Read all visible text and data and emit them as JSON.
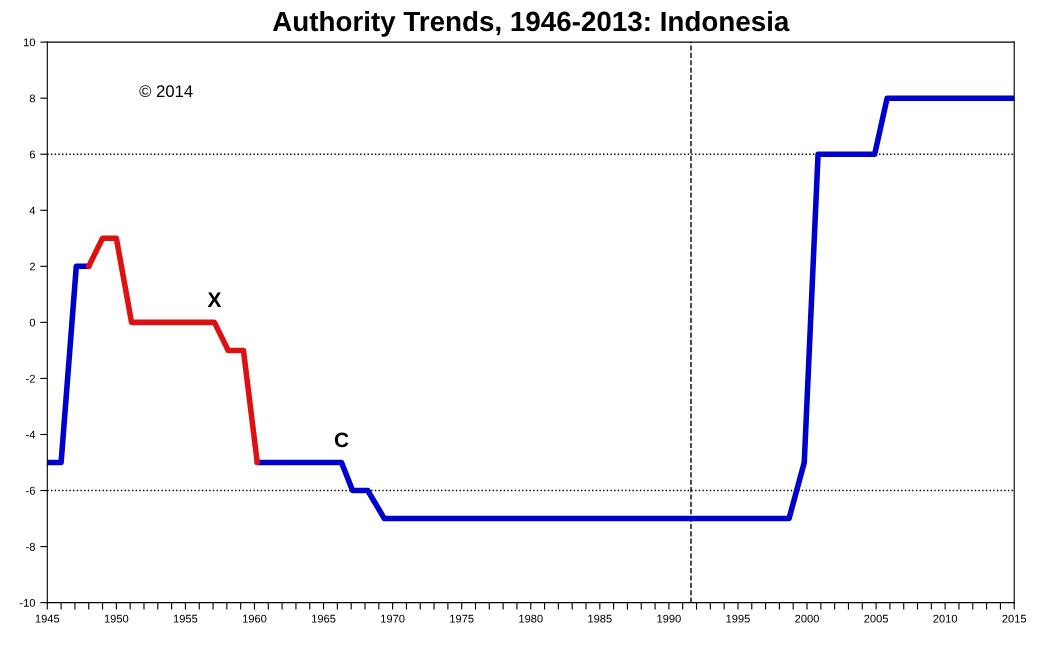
{
  "chart_data": {
    "type": "line",
    "title": "Authority Trends, 1946-2013: Indonesia",
    "series": [
      {
        "color": "#0000cc",
        "x": [
          1945,
          1946,
          1947.1,
          1948,
          null,
          1960.2,
          1966.3,
          1967.1,
          1968.2,
          1969.4,
          1998.7,
          1999.8,
          2000.8,
          2004.9,
          2005.8,
          2015
        ],
        "values": [
          -5,
          -5,
          2,
          2,
          null,
          -5,
          -5,
          -6,
          -6,
          -7,
          -7,
          -5,
          6,
          6,
          8,
          8
        ]
      },
      {
        "color": "#dd1111",
        "x": [
          1948,
          1949,
          1950,
          1951.1,
          1957.1,
          1958.1,
          1959.2,
          1960.2
        ],
        "values": [
          2,
          3,
          3,
          0,
          0,
          -1,
          -1,
          -5
        ]
      }
    ],
    "xlim": [
      1945,
      2015
    ],
    "ylim": [
      -10,
      10
    ],
    "xticks": [
      1945,
      {
        "value": 1946,
        "label": null
      },
      {
        "value": 1947,
        "label": null
      },
      {
        "value": 1948,
        "label": null
      },
      {
        "value": 1949,
        "label": null
      },
      1950,
      {
        "value": 1951,
        "label": null
      },
      {
        "value": 1952,
        "label": null
      },
      {
        "value": 1953,
        "label": null
      },
      {
        "value": 1954,
        "label": null
      },
      1955,
      {
        "value": 1956,
        "label": null
      },
      {
        "value": 1957,
        "label": null
      },
      {
        "value": 1958,
        "label": null
      },
      {
        "value": 1959,
        "label": null
      },
      1960,
      {
        "value": 1961,
        "label": null
      },
      {
        "value": 1962,
        "label": null
      },
      {
        "value": 1963,
        "label": null
      },
      {
        "value": 1964,
        "label": null
      },
      1965,
      {
        "value": 1966,
        "label": null
      },
      {
        "value": 1967,
        "label": null
      },
      {
        "value": 1968,
        "label": null
      },
      {
        "value": 1969,
        "label": null
      },
      1970,
      {
        "value": 1971,
        "label": null
      },
      {
        "value": 1972,
        "label": null
      },
      {
        "value": 1973,
        "label": null
      },
      {
        "value": 1974,
        "label": null
      },
      1975,
      {
        "value": 1976,
        "label": null
      },
      {
        "value": 1977,
        "label": null
      },
      {
        "value": 1978,
        "label": null
      },
      {
        "value": 1979,
        "label": null
      },
      1980,
      {
        "value": 1981,
        "label": null
      },
      {
        "value": 1982,
        "label": null
      },
      {
        "value": 1983,
        "label": null
      },
      {
        "value": 1984,
        "label": null
      },
      1985,
      {
        "value": 1986,
        "label": null
      },
      {
        "value": 1987,
        "label": null
      },
      {
        "value": 1988,
        "label": null
      },
      {
        "value": 1989,
        "label": null
      },
      1990,
      {
        "value": 1991,
        "label": null
      },
      {
        "value": 1992,
        "label": null
      },
      {
        "value": 1993,
        "label": null
      },
      {
        "value": 1994,
        "label": null
      },
      1995,
      {
        "value": 1996,
        "label": null
      },
      {
        "value": 1997,
        "label": null
      },
      {
        "value": 1998,
        "label": null
      },
      {
        "value": 1999,
        "label": null
      },
      2000,
      {
        "value": 2001,
        "label": null
      },
      {
        "value": 2002,
        "label": null
      },
      {
        "value": 2003,
        "label": null
      },
      {
        "value": 2004,
        "label": null
      },
      2005,
      {
        "value": 2006,
        "label": null
      },
      {
        "value": 2007,
        "label": null
      },
      {
        "value": 2008,
        "label": null
      },
      {
        "value": 2009,
        "label": null
      },
      2010,
      {
        "value": 2011,
        "label": null
      },
      {
        "value": 2012,
        "label": null
      },
      {
        "value": 2013,
        "label": null
      },
      {
        "value": 2014,
        "label": null
      },
      2015
    ],
    "yticks": [
      -10,
      -8,
      -6,
      -4,
      -2,
      0,
      2,
      4,
      6,
      8,
      10
    ],
    "ref_lines": [
      {
        "axis": "y",
        "value": 6,
        "color": "#000000",
        "line_style": "dotted"
      },
      {
        "axis": "y",
        "value": -6,
        "color": "#000000",
        "line_style": "dotted"
      },
      {
        "axis": "x",
        "value": 1991.6,
        "color": "#000000",
        "line_style": "dashed"
      }
    ],
    "annotations": [
      "© 2014",
      {
        "text": "X",
        "x": 1957.1,
        "y": 0
      },
      {
        "text": "C",
        "x": 1966.3,
        "y": -5
      }
    ],
    "grid": false,
    "marker": "none",
    "line_style": "solid"
  }
}
